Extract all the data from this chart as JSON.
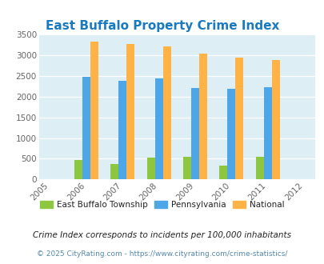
{
  "title": "East Buffalo Property Crime Index",
  "years": [
    2005,
    2006,
    2007,
    2008,
    2009,
    2010,
    2011,
    2012
  ],
  "bar_years": [
    2006,
    2007,
    2008,
    2009,
    2010,
    2011
  ],
  "east_buffalo": [
    470,
    375,
    520,
    555,
    340,
    555
  ],
  "pennsylvania": [
    2470,
    2380,
    2430,
    2200,
    2180,
    2230
  ],
  "national": [
    3330,
    3260,
    3210,
    3040,
    2940,
    2890
  ],
  "color_east": "#8dc63f",
  "color_pa": "#4da6e8",
  "color_national": "#ffb347",
  "bg_color": "#ddeef5",
  "title_color": "#1a7abf",
  "ylim": [
    0,
    3500
  ],
  "yticks": [
    0,
    500,
    1000,
    1500,
    2000,
    2500,
    3000,
    3500
  ],
  "legend_labels": [
    "East Buffalo Township",
    "Pennsylvania",
    "National"
  ],
  "footnote1": "Crime Index corresponds to incidents per 100,000 inhabitants",
  "footnote2": "© 2025 CityRating.com - https://www.cityrating.com/crime-statistics/",
  "footnote_color1": "#222222",
  "footnote_color2": "#5588aa",
  "bar_width": 0.22
}
